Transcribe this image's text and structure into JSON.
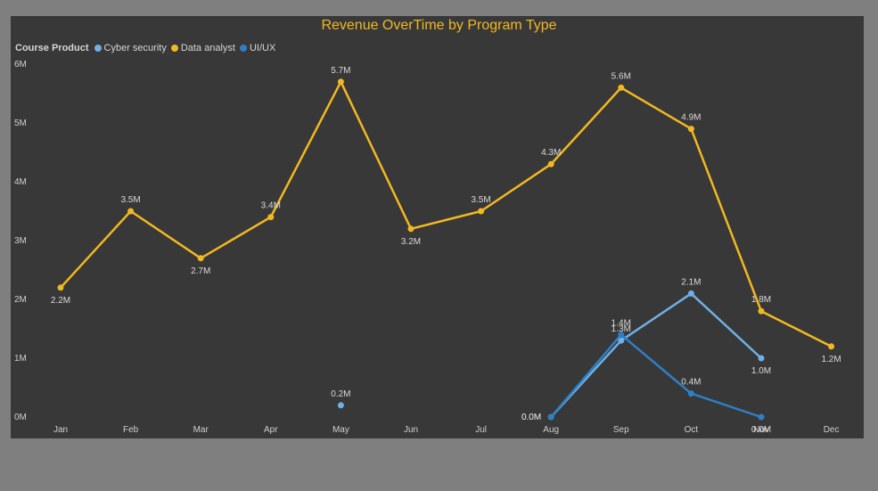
{
  "chart_data": {
    "type": "line",
    "title": "Revenue OverTime by Program Type",
    "legend_title": "Course Product",
    "legend_position": "top-left",
    "categories": [
      "Jan",
      "Feb",
      "Mar",
      "Apr",
      "May",
      "Jun",
      "Jul",
      "Aug",
      "Sep",
      "Oct",
      "Nov",
      "Dec"
    ],
    "y_ticks": [
      "0M",
      "1M",
      "2M",
      "3M",
      "4M",
      "5M",
      "6M"
    ],
    "ylim": [
      0,
      6
    ],
    "grid": false,
    "series": [
      {
        "name": "Cyber security",
        "color": "#6fb0e6",
        "values": [
          null,
          null,
          null,
          null,
          0.2,
          null,
          null,
          0.0,
          1.3,
          2.1,
          1.0,
          null
        ],
        "labels": [
          null,
          null,
          null,
          null,
          "0.2M",
          null,
          null,
          "0.0M",
          "1.3M",
          "2.1M",
          "1.0M",
          null
        ]
      },
      {
        "name": "Data analyst",
        "color": "#f2b821",
        "values": [
          2.2,
          3.5,
          2.7,
          3.4,
          5.7,
          3.2,
          3.5,
          4.3,
          5.6,
          4.9,
          1.8,
          1.2
        ],
        "labels": [
          "2.2M",
          "3.5M",
          "2.7M",
          "3.4M",
          "5.7M",
          "3.2M",
          "3.5M",
          "4.3M",
          "5.6M",
          "4.9M",
          "1.8M",
          "1.2M"
        ]
      },
      {
        "name": "UI/UX",
        "color": "#2f7fc6",
        "values": [
          null,
          null,
          null,
          null,
          null,
          null,
          null,
          0.0,
          1.4,
          0.4,
          0.0,
          null
        ],
        "labels": [
          null,
          null,
          null,
          null,
          null,
          null,
          null,
          "0.0M",
          "1.4M",
          "0.4M",
          "0.0M",
          null
        ]
      }
    ]
  }
}
